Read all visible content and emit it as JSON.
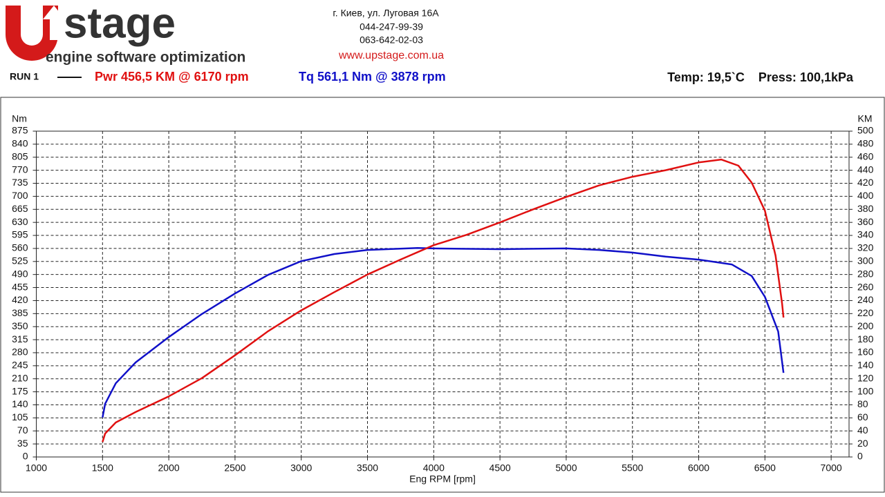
{
  "header": {
    "logo": "stage",
    "tagline": "engine software optimization",
    "address": "г. Киев, ул. Луговая 16А",
    "phone1": "044-247-99-39",
    "phone2": "063-642-02-03",
    "url": "www.upstage.com.ua",
    "run": "RUN 1",
    "power_summary": "Pwr  456,5 KM @ 6170 rpm",
    "torque_summary": "Tq 561,1 Nm @ 3878 rpm",
    "conditions": "Temp: 19,5`C    Press: 100,1kPa"
  },
  "chart_data": {
    "type": "line",
    "x_label": "Eng RPM [rpm]",
    "y_label": "Nm",
    "y2_label": "KM",
    "grid": true,
    "xlim": [
      1000,
      7135
    ],
    "xticks": [
      1000,
      1500,
      2000,
      2500,
      3000,
      3500,
      4000,
      4500,
      5000,
      5500,
      6000,
      6500,
      7000
    ],
    "ylim": [
      0,
      875
    ],
    "yticks": [
      0,
      35,
      70,
      105,
      140,
      175,
      210,
      245,
      280,
      315,
      350,
      385,
      420,
      455,
      490,
      525,
      560,
      595,
      630,
      665,
      700,
      735,
      770,
      805,
      840,
      875
    ],
    "y2lim": [
      0,
      500
    ],
    "y2ticks": [
      0,
      20,
      40,
      60,
      80,
      100,
      120,
      140,
      160,
      180,
      200,
      220,
      240,
      260,
      280,
      300,
      320,
      340,
      360,
      380,
      400,
      420,
      440,
      460,
      480,
      500
    ],
    "series": [
      {
        "color": "#1010c8",
        "x": [
          1500,
          1520,
          1600,
          1750,
          2000,
          2250,
          2500,
          2750,
          3000,
          3250,
          3500,
          3878,
          4000,
          4500,
          5000,
          5250,
          5500,
          5750,
          6000,
          6250,
          6400,
          6500,
          6600,
          6640
        ],
        "values": [
          106,
          143,
          198,
          254,
          322,
          384,
          439,
          489,
          526,
          545,
          556,
          561.1,
          560,
          558,
          560,
          556,
          549,
          538,
          530,
          517,
          486,
          430,
          337,
          226
        ]
      },
      {
        "color": "#e01010",
        "axis": "y2",
        "x": [
          1500,
          1520,
          1600,
          1750,
          2000,
          2250,
          2500,
          2750,
          3000,
          3250,
          3500,
          3750,
          4000,
          4250,
          4500,
          4750,
          5000,
          5250,
          5500,
          5750,
          6000,
          6170,
          6300,
          6400,
          6500,
          6580,
          6630,
          6640
        ],
        "values": [
          23,
          36,
          53,
          69,
          93,
          121,
          156,
          193,
          225,
          253,
          280,
          303,
          325,
          341,
          360,
          380,
          399,
          417,
          430,
          440,
          452,
          456.5,
          447,
          421,
          378,
          309,
          235,
          214
        ]
      }
    ]
  }
}
